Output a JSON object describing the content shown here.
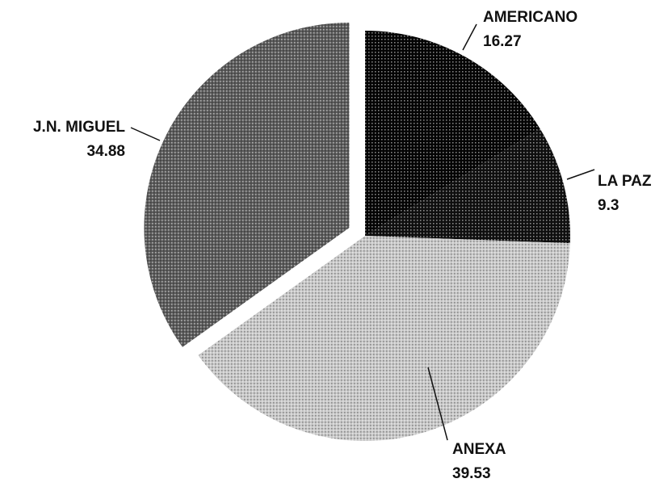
{
  "chart_data": {
    "type": "pie",
    "categories": [
      "AMERICANO",
      "LA PAZ",
      "ANEXA",
      "J.N. MIGUEL"
    ],
    "values": [
      16.27,
      9.3,
      39.53,
      34.88
    ],
    "colors": [
      "#050505",
      "#111111",
      "#c9c9c9",
      "#5c5c5c"
    ]
  }
}
